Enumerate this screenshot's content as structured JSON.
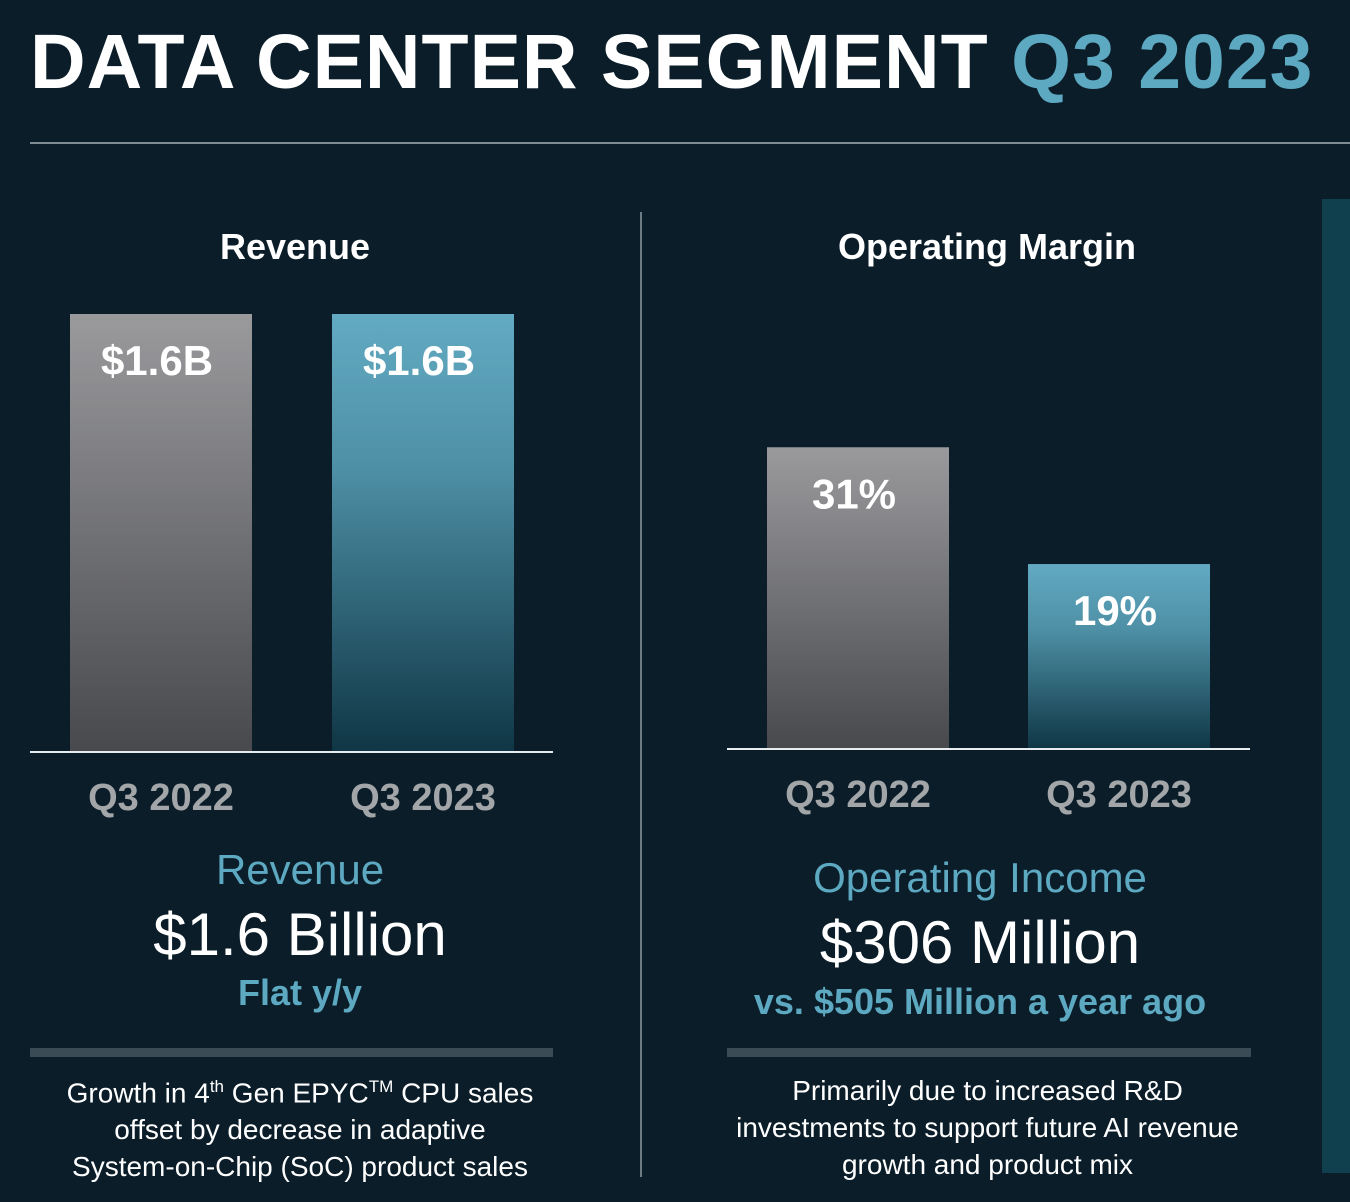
{
  "title": {
    "main": "DATA CENTER SEGMENT",
    "accent": "Q3 2023"
  },
  "chart_data": [
    {
      "type": "bar",
      "title": "Revenue",
      "categories": [
        "Q3 2022",
        "Q3 2023"
      ],
      "values": [
        1.6,
        1.6
      ],
      "data_labels": [
        "$1.6B",
        "$1.6B"
      ],
      "ylim": [
        0,
        1.6
      ],
      "grid": false
    },
    {
      "type": "bar",
      "title": "Operating Margin",
      "categories": [
        "Q3 2022",
        "Q3 2023"
      ],
      "values": [
        31,
        19
      ],
      "data_labels": [
        "31%",
        "19%"
      ],
      "ylim": [
        0,
        45
      ],
      "grid": false
    }
  ],
  "colors": {
    "prior_year": "#9a9a9d",
    "current_year": "#62aac2",
    "accent": "#5da9c1"
  },
  "revenue_summary": {
    "label": "Revenue",
    "value": "$1.6 Billion",
    "sub": "Flat y/y",
    "note_parts": [
      "Growth in 4",
      "th",
      " Gen EPYC",
      "TM",
      " CPU sales"
    ],
    "note_line2": "offset by decrease in adaptive",
    "note_line3": "System-on-Chip (SoC) product sales"
  },
  "opinc_summary": {
    "label": "Operating Income",
    "value": "$306 Million",
    "sub": "vs. $505 Million a year ago",
    "note_line1": "Primarily due to increased R&D",
    "note_line2": "investments to support future AI revenue",
    "note_line3": "growth and product mix"
  }
}
